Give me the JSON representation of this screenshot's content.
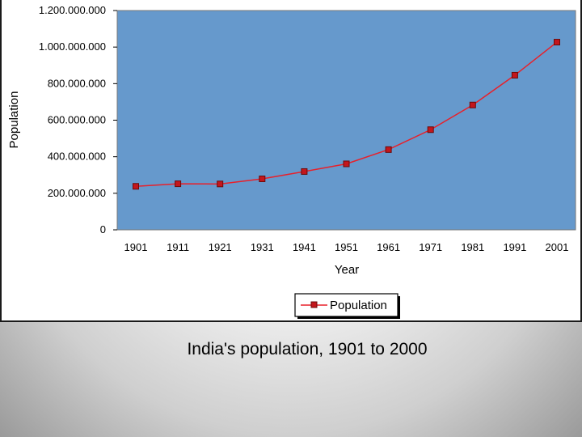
{
  "caption": "India's population, 1901 to 2000",
  "chart_data": {
    "type": "line",
    "title": "",
    "xlabel": "Year",
    "ylabel": "Population",
    "categories": [
      "1901",
      "1911",
      "1921",
      "1931",
      "1941",
      "1951",
      "1961",
      "1971",
      "1981",
      "1991",
      "2001"
    ],
    "series": [
      {
        "name": "Population",
        "values": [
          238000000,
          252000000,
          251000000,
          279000000,
          319000000,
          361000000,
          439000000,
          548000000,
          683000000,
          846000000,
          1027000000
        ]
      }
    ],
    "ylim": [
      0,
      1200000000
    ],
    "yticks": [
      {
        "value": 0,
        "label": "0"
      },
      {
        "value": 200000000,
        "label": "200.000.000"
      },
      {
        "value": 400000000,
        "label": "400.000.000"
      },
      {
        "value": 600000000,
        "label": "600.000.000"
      },
      {
        "value": 800000000,
        "label": "800.000.000"
      },
      {
        "value": 1000000000,
        "label": "1.000.000.000"
      },
      {
        "value": 1200000000,
        "label": "1.200.000.000"
      }
    ],
    "grid": false,
    "legend_position": "bottom",
    "colors": {
      "plot_background": "#6699cc",
      "line": "#e8202a",
      "marker": "#c4161c",
      "marker_edge": "#6b0a0a"
    }
  }
}
